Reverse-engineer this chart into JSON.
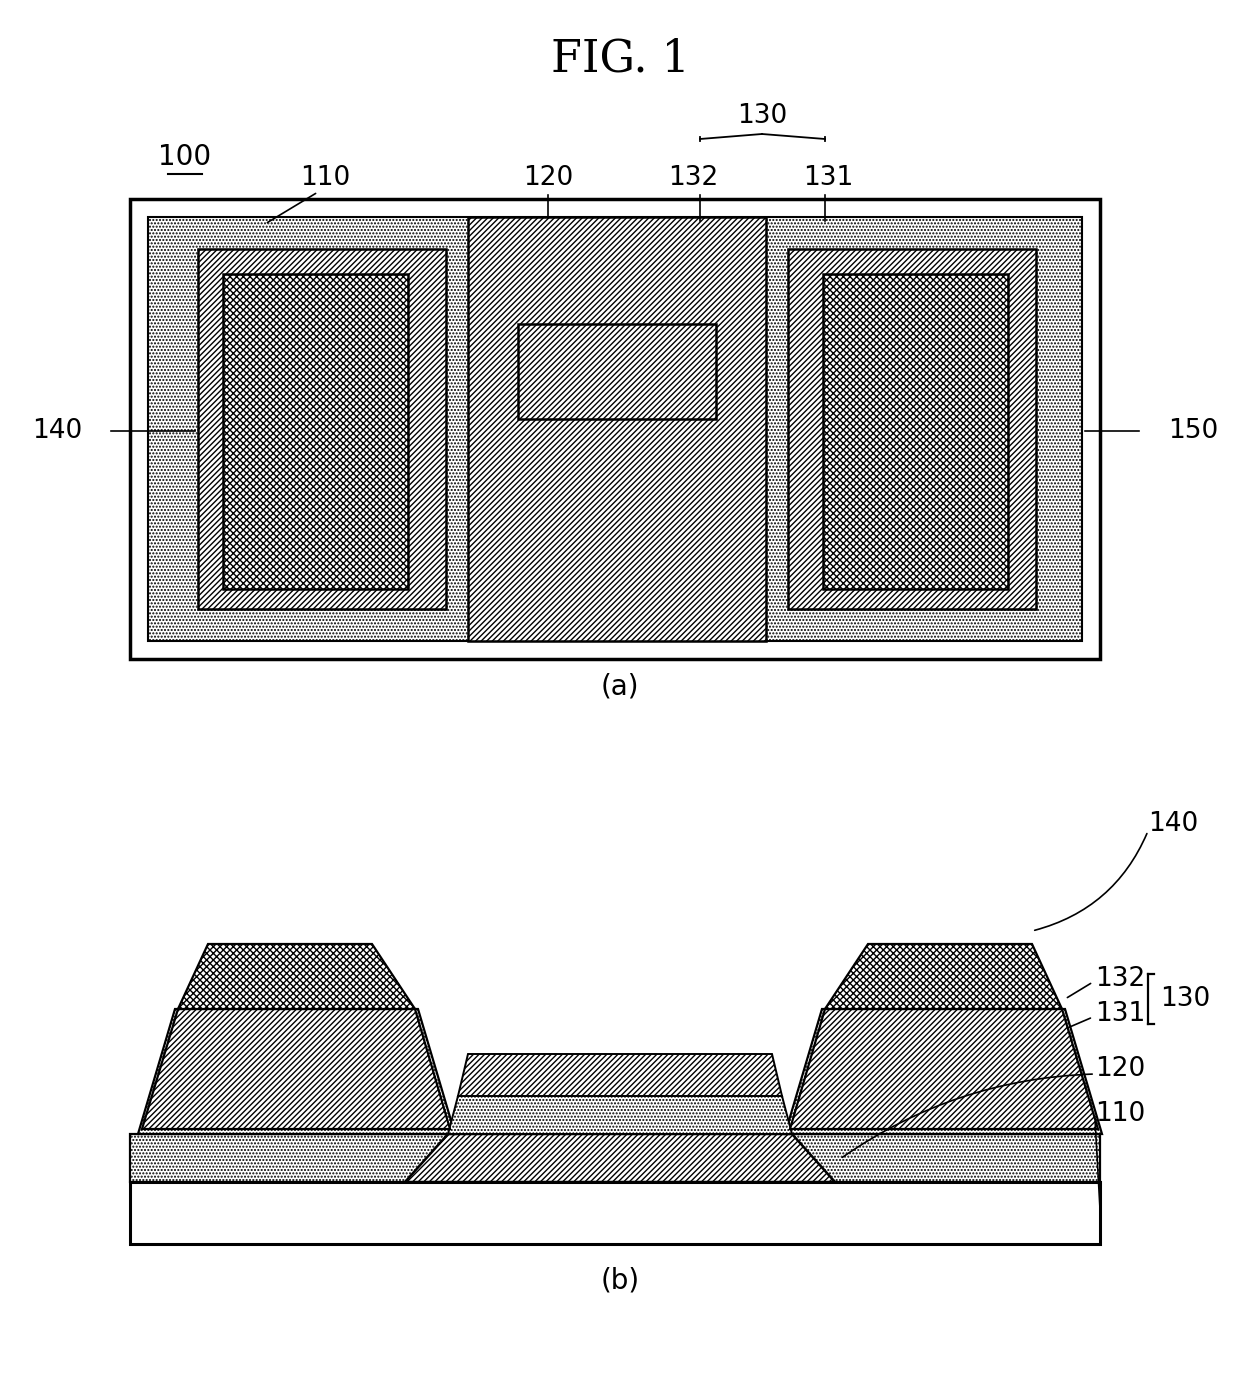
{
  "title": "FIG. 1",
  "title_fontsize": 32,
  "bg_color": "#ffffff",
  "line_color": "#000000",
  "label_100": "100",
  "label_110": "110",
  "label_120": "120",
  "label_130": "130",
  "label_131": "131",
  "label_132": "132",
  "label_140": "140",
  "label_150": "150",
  "caption_a": "(a)",
  "caption_b": "(b)"
}
